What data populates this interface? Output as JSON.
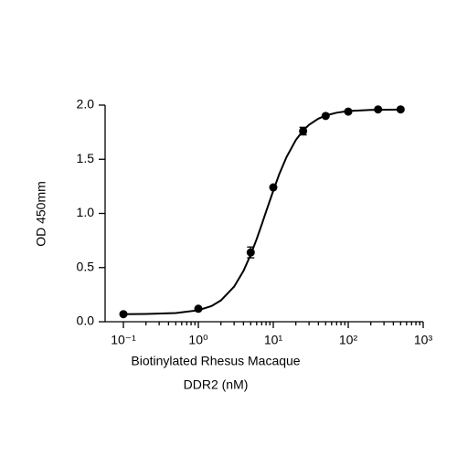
{
  "chart_data": {
    "type": "scatter",
    "x_label": [
      "Biotinylated Rhesus Macaque",
      "DDR2 (nM)"
    ],
    "y_label": "OD 450mm",
    "xscale": "log",
    "xlim": [
      0.057,
      1000
    ],
    "ylim": [
      0,
      2
    ],
    "xticks": [
      {
        "value": 0.1,
        "label": "10⁻¹"
      },
      {
        "value": 1,
        "label": "10⁰"
      },
      {
        "value": 10,
        "label": "10¹"
      },
      {
        "value": 100,
        "label": "10²"
      },
      {
        "value": 1000,
        "label": "10³"
      }
    ],
    "xminorticks": [
      0.2,
      0.3,
      0.4,
      0.5,
      0.6,
      0.7,
      0.8,
      0.9,
      2,
      3,
      4,
      5,
      6,
      7,
      8,
      9,
      20,
      30,
      40,
      50,
      60,
      70,
      80,
      90,
      200,
      300,
      400,
      500,
      600,
      700,
      800,
      900
    ],
    "yticks": [
      {
        "value": 0,
        "label": "0.0"
      },
      0.5,
      {
        "value": 1,
        "label": "1.0"
      },
      1.5,
      {
        "value": 2,
        "label": "2.0"
      }
    ],
    "series": [
      {
        "type": "scatter",
        "color": "#000000",
        "x": [
          0.1,
          1,
          5,
          10,
          25,
          50,
          100,
          250,
          500
        ],
        "values": [
          0.07,
          0.12,
          0.64,
          1.24,
          1.76,
          1.9,
          1.94,
          1.96,
          1.96
        ],
        "errors": [
          0.01,
          0.01,
          0.05,
          0.01,
          0.035,
          0.01,
          0.01,
          0.01,
          0.01
        ]
      },
      {
        "type": "line",
        "color": "#000000",
        "x": [
          0.1,
          0.2,
          0.5,
          1,
          1.5,
          2,
          3,
          4,
          5,
          6,
          7,
          8,
          10,
          12,
          15,
          20,
          25,
          30,
          40,
          50,
          70,
          100,
          200,
          500
        ],
        "values": [
          0.07,
          0.072,
          0.08,
          0.106,
          0.145,
          0.197,
          0.324,
          0.469,
          0.62,
          0.763,
          0.896,
          1.015,
          1.21,
          1.362,
          1.52,
          1.678,
          1.765,
          1.818,
          1.875,
          1.904,
          1.93,
          1.945,
          1.956,
          1.959
        ]
      }
    ]
  }
}
